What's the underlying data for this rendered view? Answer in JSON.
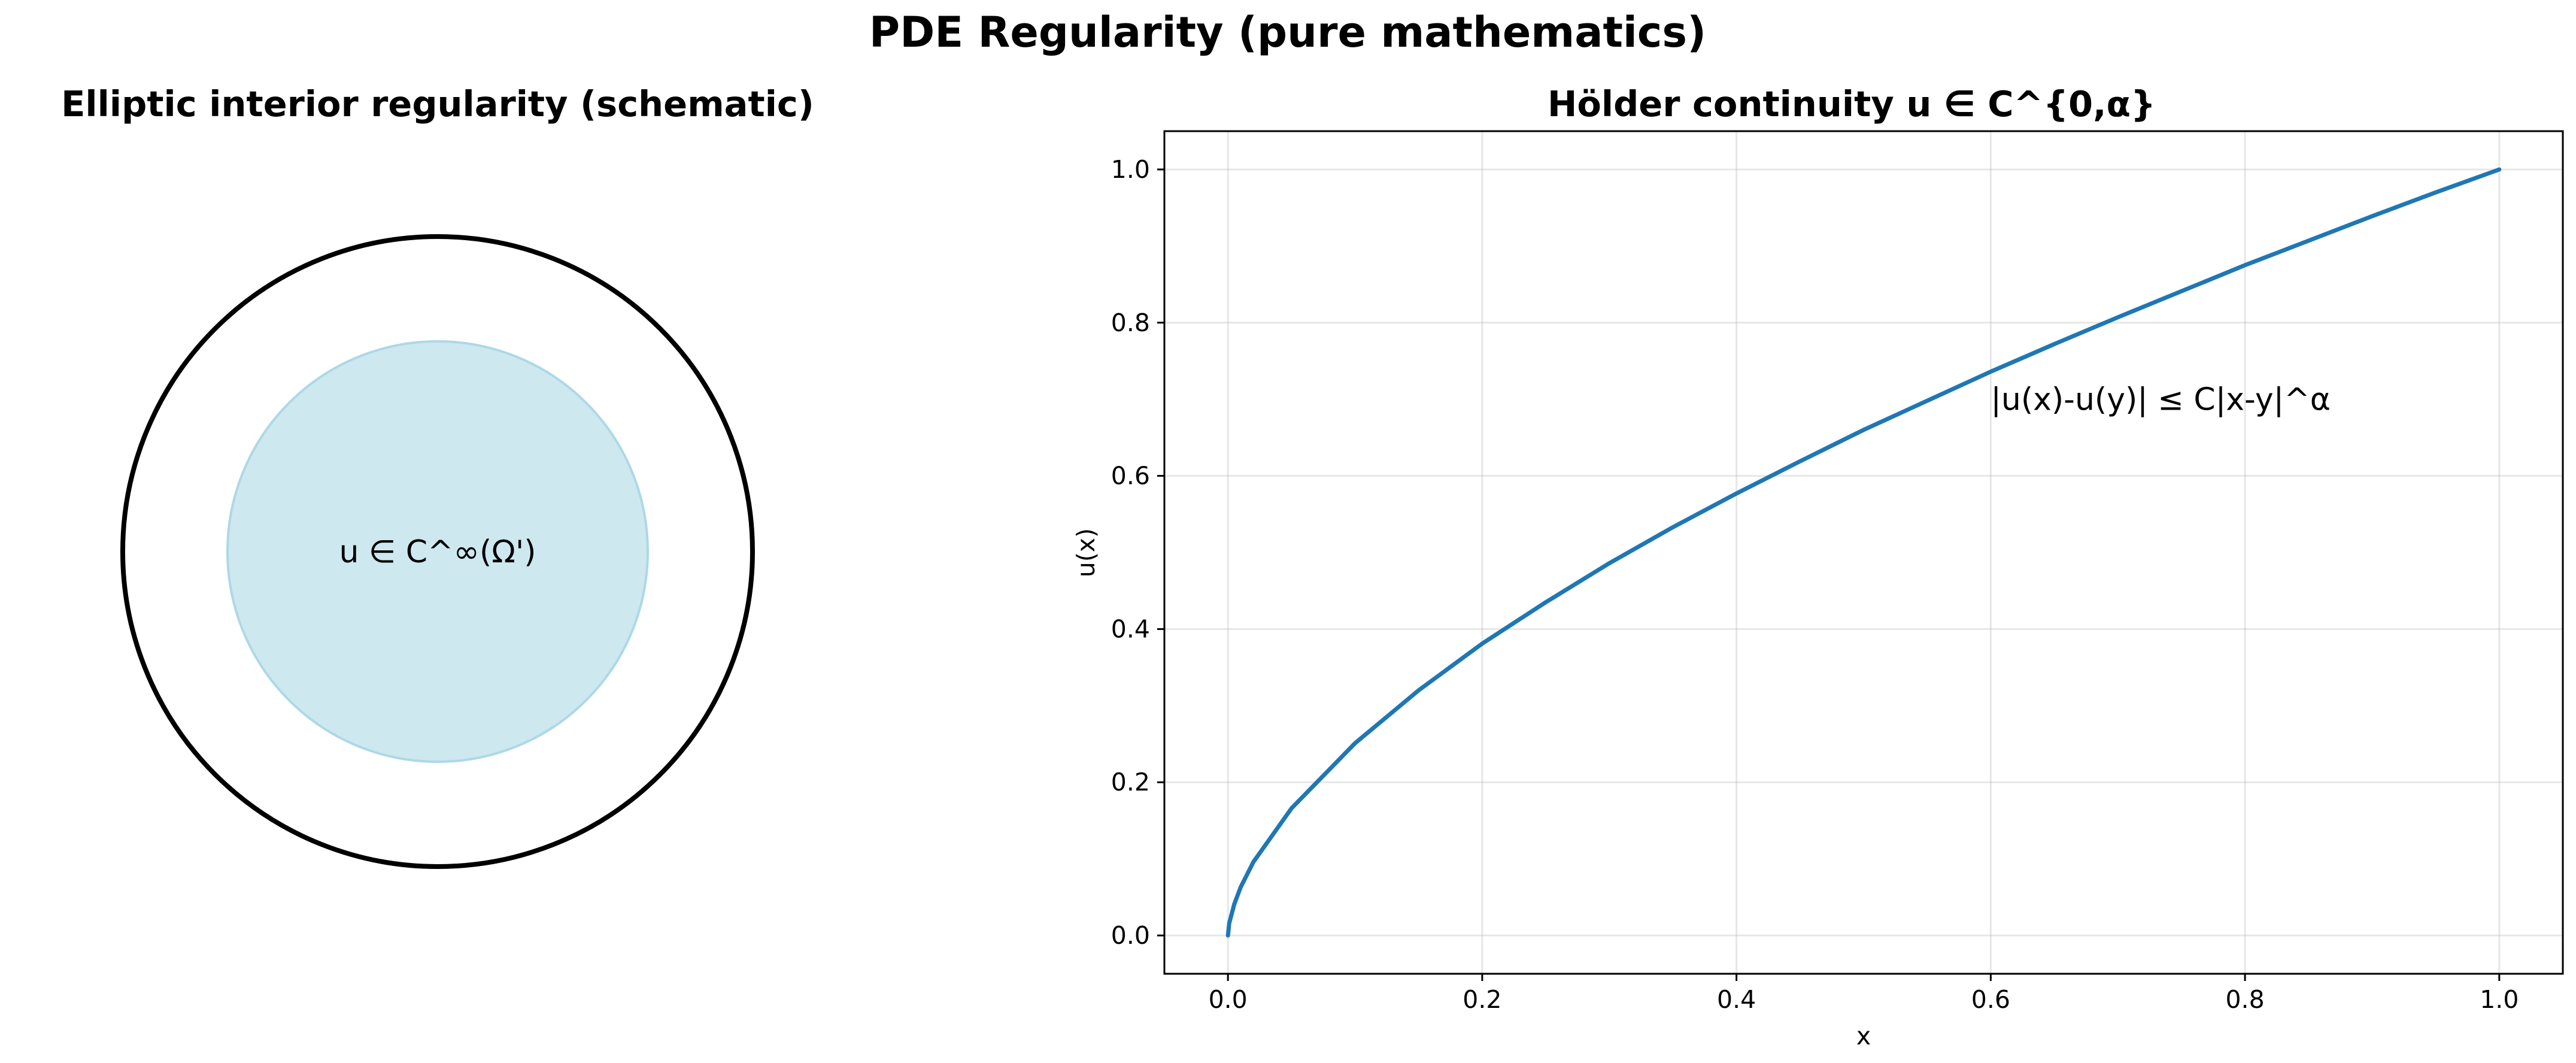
{
  "figure": {
    "suptitle": "PDE Regularity (pure mathematics)"
  },
  "left_panel": {
    "title": "Elliptic interior regularity (schematic)",
    "inner_label": "u ∈ C^∞(Ω')",
    "outer_circle_color": "#000000",
    "inner_disk_color": "#add8e6"
  },
  "chart_data": {
    "type": "line",
    "title": "Hölder continuity u ∈ C^{0,α}",
    "xlabel": "x",
    "ylabel": "u(x)",
    "xlim": [
      -0.05,
      1.05
    ],
    "ylim": [
      -0.05,
      1.05
    ],
    "x_ticks": [
      0.0,
      0.2,
      0.4,
      0.6,
      0.8,
      1.0
    ],
    "x_tick_labels": [
      "0.0",
      "0.2",
      "0.4",
      "0.6",
      "0.8",
      "1.0"
    ],
    "y_ticks": [
      0.0,
      0.2,
      0.4,
      0.6,
      0.8,
      1.0
    ],
    "y_tick_labels": [
      "0.0",
      "0.2",
      "0.4",
      "0.6",
      "0.8",
      "1.0"
    ],
    "grid": true,
    "series": [
      {
        "color": "#1f77b4",
        "x": [
          0.0,
          0.001,
          0.005,
          0.01,
          0.02,
          0.05,
          0.1,
          0.15,
          0.2,
          0.25,
          0.3,
          0.35,
          0.4,
          0.45,
          0.5,
          0.55,
          0.6,
          0.65,
          0.7,
          0.75,
          0.8,
          0.85,
          0.9,
          0.95,
          1.0
        ],
        "y": [
          0.0,
          0.016,
          0.041,
          0.063,
          0.096,
          0.166,
          0.251,
          0.32,
          0.381,
          0.435,
          0.486,
          0.533,
          0.577,
          0.619,
          0.66,
          0.698,
          0.736,
          0.772,
          0.807,
          0.841,
          0.875,
          0.907,
          0.939,
          0.97,
          1.0
        ]
      }
    ],
    "annotations": [
      {
        "text": "|u(x)-u(y)| ≤ C|x-y|^α",
        "x": 0.6,
        "y": 0.7
      }
    ]
  }
}
